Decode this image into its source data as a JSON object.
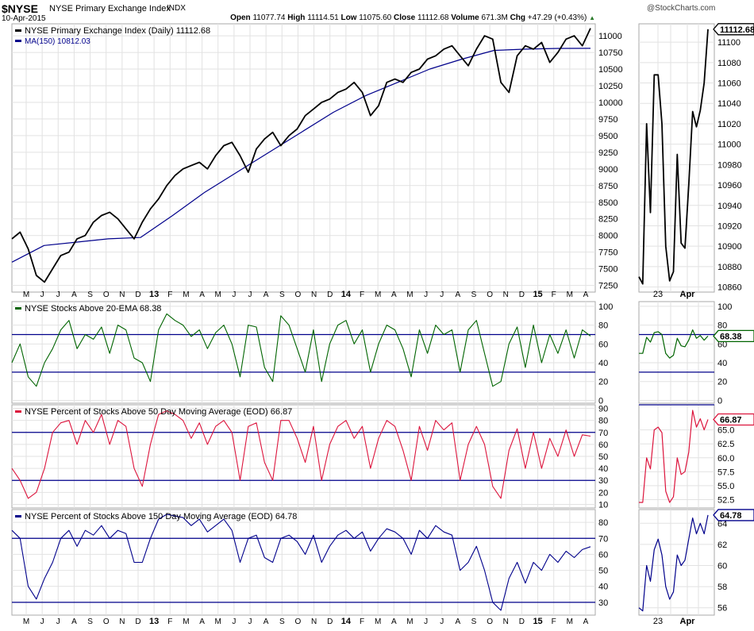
{
  "header": {
    "symbol": "$NYSE",
    "name": "NYSE Primary Exchange Index",
    "exchange": "INDX",
    "date": "10-Apr-2015",
    "watermark": "@StockCharts.com",
    "quote": [
      [
        "Open",
        "11077.74"
      ],
      [
        "High",
        "11114.51"
      ],
      [
        "Low",
        "11075.60"
      ],
      [
        "Close",
        "11112.68"
      ],
      [
        "Volume",
        "671.3M"
      ],
      [
        "Chg",
        "+47.29 (+0.43%)"
      ]
    ],
    "chg_arrow": "up-triangle-icon",
    "up_color": "#2a7a2a"
  },
  "chart_data": [
    {
      "type": "line",
      "title": "NYSE Primary Exchange Index (Daily) 11112.68",
      "x_labels": [
        "M",
        "J",
        "J",
        "A",
        "S",
        "O",
        "N",
        "D",
        "13",
        "F",
        "M",
        "A",
        "M",
        "J",
        "J",
        "A",
        "S",
        "O",
        "N",
        "D",
        "14",
        "F",
        "M",
        "A",
        "M",
        "J",
        "J",
        "A",
        "S",
        "O",
        "N",
        "D",
        "15",
        "F",
        "M",
        "A"
      ],
      "ylim": [
        7150,
        11180
      ],
      "yticks": [
        7250,
        7500,
        7750,
        8000,
        8250,
        8500,
        8750,
        9000,
        9250,
        9500,
        9750,
        10000,
        10250,
        10500,
        10750,
        11000
      ],
      "series": [
        {
          "name": "NYSE Primary Exchange Index (Daily) 11112.68",
          "color": "#000000",
          "values": [
            7950,
            8050,
            7800,
            7400,
            7300,
            7500,
            7700,
            7750,
            7950,
            8000,
            8200,
            8300,
            8350,
            8250,
            8100,
            7950,
            8200,
            8400,
            8550,
            8750,
            8900,
            9000,
            9050,
            9100,
            9000,
            9200,
            9350,
            9400,
            9200,
            8950,
            9300,
            9450,
            9550,
            9350,
            9500,
            9600,
            9800,
            9900,
            10000,
            10050,
            10150,
            10200,
            10300,
            10150,
            9800,
            9950,
            10300,
            10350,
            10300,
            10450,
            10500,
            10650,
            10700,
            10800,
            10850,
            10700,
            10550,
            10800,
            11000,
            10950,
            10300,
            10150,
            10700,
            10850,
            10800,
            10900,
            10600,
            10750,
            10950,
            11000,
            10850,
            11112.68
          ]
        },
        {
          "name": "MA(150) 10812.03",
          "color": "#00008b",
          "values": [
            7600,
            7850,
            7900,
            7950,
            7970,
            8300,
            8650,
            8950,
            9250,
            9550,
            9850,
            10100,
            10300,
            10500,
            10650,
            10780,
            10800,
            10810,
            10812.03
          ]
        }
      ],
      "mini": {
        "ylim": [
          10855,
          11118
        ],
        "yticks": [
          10860,
          10880,
          10900,
          10920,
          10940,
          10960,
          10980,
          11000,
          11020,
          11040,
          11060,
          11080,
          11100
        ],
        "last_label": "11112.68",
        "values": [
          10870,
          10863,
          11020,
          10933,
          11068,
          11068,
          11020,
          10900,
          10866,
          10875,
          10990,
          10903,
          10898,
          10960,
          11032,
          11017,
          11033,
          11060,
          11112.68
        ]
      }
    },
    {
      "type": "line",
      "title": "NYSE Stocks Above 20-EMA 68.38",
      "color": "#006400",
      "ylim": [
        -3,
        105
      ],
      "yticks": [
        0,
        20,
        40,
        60,
        80,
        100
      ],
      "levels": [
        70,
        30
      ],
      "series": [
        {
          "name": "NYSE Stocks Above 20-EMA 68.38",
          "values": [
            40,
            60,
            25,
            15,
            40,
            55,
            75,
            85,
            55,
            70,
            65,
            78,
            50,
            80,
            75,
            45,
            40,
            20,
            75,
            92,
            85,
            80,
            68,
            75,
            55,
            72,
            80,
            60,
            25,
            80,
            78,
            35,
            20,
            90,
            80,
            55,
            30,
            75,
            20,
            60,
            80,
            85,
            60,
            75,
            30,
            60,
            80,
            75,
            55,
            25,
            75,
            50,
            80,
            70,
            75,
            30,
            75,
            85,
            50,
            15,
            20,
            60,
            78,
            35,
            80,
            40,
            70,
            50,
            75,
            45,
            75,
            68.38
          ]
        }
      ],
      "mini": {
        "ylim": [
          -3,
          105
        ],
        "yticks": [
          0,
          20,
          40,
          60,
          80,
          100
        ],
        "levels": [
          70,
          30
        ],
        "last_label": "68.38",
        "values": [
          50,
          50,
          67,
          62,
          72,
          73,
          70,
          50,
          45,
          48,
          66,
          58,
          57,
          64,
          75,
          66,
          69,
          64,
          68.38
        ]
      }
    },
    {
      "type": "line",
      "title": "NYSE Percent of Stocks Above 50 Day Moving Average (EOD) 66.87",
      "color": "#dc143c",
      "ylim": [
        7,
        93
      ],
      "yticks": [
        10,
        20,
        30,
        40,
        50,
        60,
        70,
        80,
        90
      ],
      "levels": [
        70,
        30
      ],
      "series": [
        {
          "name": "NYSE Percent of Stocks Above 50 Day Moving Average (EOD) 66.87",
          "values": [
            40,
            30,
            15,
            20,
            40,
            70,
            78,
            80,
            60,
            80,
            70,
            85,
            60,
            80,
            75,
            40,
            25,
            60,
            85,
            88,
            85,
            80,
            65,
            78,
            60,
            75,
            80,
            70,
            30,
            75,
            78,
            45,
            30,
            80,
            80,
            65,
            45,
            75,
            30,
            60,
            75,
            80,
            65,
            75,
            40,
            65,
            80,
            75,
            55,
            30,
            75,
            55,
            80,
            72,
            78,
            30,
            60,
            75,
            60,
            25,
            15,
            55,
            73,
            40,
            70,
            40,
            65,
            50,
            72,
            50,
            68,
            66.87
          ]
        }
      ],
      "mini": {
        "ylim": [
          51,
          69.5
        ],
        "yticks": [
          52.5,
          55.0,
          57.5,
          60.0,
          62.5,
          65.0
        ],
        "levels": [
          70
        ],
        "last_label": "66.87",
        "values": [
          52,
          52,
          60,
          58,
          65,
          65.5,
          64.5,
          54,
          52,
          53,
          60,
          57,
          57.5,
          61,
          68.5,
          65.5,
          67,
          65,
          66.87
        ]
      }
    },
    {
      "type": "line",
      "title": "NYSE Percent of Stocks Above 150 Day Moving Average (EOD) 64.78",
      "color": "#00008b",
      "ylim": [
        22,
        88
      ],
      "yticks": [
        30,
        40,
        50,
        60,
        70,
        80
      ],
      "levels": [
        70,
        30
      ],
      "series": [
        {
          "name": "NYSE Percent of Stocks Above 150 Day Moving Average (EOD) 64.78",
          "values": [
            75,
            70,
            40,
            32,
            45,
            55,
            70,
            75,
            65,
            75,
            72,
            78,
            70,
            75,
            73,
            55,
            55,
            70,
            82,
            85,
            84,
            83,
            78,
            82,
            74,
            78,
            82,
            75,
            55,
            70,
            72,
            58,
            55,
            70,
            72,
            68,
            60,
            72,
            55,
            65,
            72,
            75,
            70,
            74,
            62,
            70,
            76,
            74,
            70,
            60,
            75,
            70,
            78,
            74,
            72,
            50,
            55,
            65,
            50,
            30,
            25,
            45,
            55,
            42,
            55,
            50,
            60,
            55,
            62,
            58,
            63,
            64.78
          ]
        }
      ],
      "mini": {
        "ylim": [
          55.3,
          65.3
        ],
        "yticks": [
          56,
          58,
          60,
          62,
          64
        ],
        "levels": [],
        "last_label": "64.78",
        "values": [
          56,
          55.7,
          60,
          58.5,
          61.5,
          62.5,
          61,
          58,
          56.8,
          57.5,
          61,
          60,
          60.5,
          62.5,
          64.5,
          63,
          64,
          63,
          64.78
        ]
      }
    }
  ],
  "mini_x_labels": [
    "23",
    "Apr"
  ]
}
